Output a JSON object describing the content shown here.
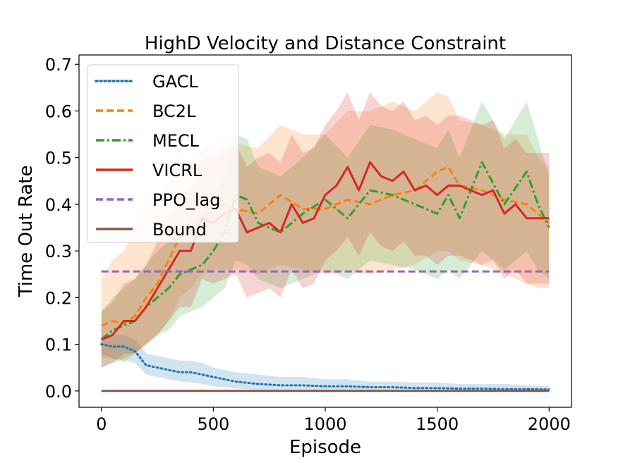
{
  "chart_data": {
    "type": "line",
    "title": "HighD Velocity and Distance Constraint",
    "xlabel": "Episode",
    "ylabel": "Time Out Rate",
    "xlim": [
      -100,
      2100
    ],
    "ylim": [
      -0.035,
      0.72
    ],
    "xticks": [
      0,
      500,
      1000,
      1500,
      2000
    ],
    "xtick_labels": [
      "0",
      "500",
      "1000",
      "1500",
      "2000"
    ],
    "yticks": [
      0.0,
      0.1,
      0.2,
      0.3,
      0.4,
      0.5,
      0.6,
      0.7
    ],
    "ytick_labels": [
      "0.0",
      "0.1",
      "0.2",
      "0.3",
      "0.4",
      "0.5",
      "0.6",
      "0.7"
    ],
    "legend_position": "top-left",
    "series": [
      {
        "name": "GACL",
        "color": "#1f77b4",
        "dash": "dotted",
        "x": [
          0,
          50,
          100,
          150,
          200,
          250,
          300,
          350,
          400,
          450,
          500,
          550,
          600,
          700,
          800,
          900,
          1000,
          1100,
          1200,
          1300,
          1400,
          1500,
          1600,
          1700,
          1800,
          1900,
          2000
        ],
        "y": [
          0.1,
          0.095,
          0.095,
          0.085,
          0.055,
          0.05,
          0.045,
          0.04,
          0.04,
          0.035,
          0.03,
          0.025,
          0.02,
          0.015,
          0.012,
          0.012,
          0.01,
          0.01,
          0.008,
          0.008,
          0.006,
          0.006,
          0.005,
          0.005,
          0.004,
          0.004,
          0.003
        ],
        "band_low": [
          0.08,
          0.07,
          0.065,
          0.06,
          0.035,
          0.03,
          0.025,
          0.02,
          0.018,
          0.015,
          0.01,
          0.008,
          0.005,
          0.003,
          0.002,
          0.002,
          0.001,
          0.001,
          0.0,
          0.0,
          0.0,
          0.0,
          0.0,
          0.0,
          0.0,
          0.0,
          0.0
        ],
        "band_high": [
          0.12,
          0.12,
          0.12,
          0.11,
          0.08,
          0.075,
          0.07,
          0.065,
          0.065,
          0.06,
          0.05,
          0.045,
          0.04,
          0.035,
          0.03,
          0.03,
          0.025,
          0.025,
          0.02,
          0.02,
          0.018,
          0.018,
          0.015,
          0.015,
          0.015,
          0.012,
          0.01
        ]
      },
      {
        "name": "BC2L",
        "color": "#ff7f0e",
        "dash": "dashed",
        "x": [
          0,
          50,
          100,
          150,
          200,
          250,
          300,
          350,
          400,
          450,
          500,
          550,
          600,
          700,
          800,
          900,
          1000,
          1100,
          1200,
          1300,
          1400,
          1500,
          1550,
          1600,
          1700,
          1800,
          1900,
          1950,
          2000
        ],
        "y": [
          0.14,
          0.15,
          0.145,
          0.16,
          0.2,
          0.23,
          0.28,
          0.33,
          0.35,
          0.37,
          0.39,
          0.4,
          0.39,
          0.38,
          0.42,
          0.39,
          0.39,
          0.41,
          0.4,
          0.42,
          0.43,
          0.47,
          0.48,
          0.44,
          0.43,
          0.41,
          0.4,
          0.38,
          0.36
        ],
        "band_low": [
          0.07,
          0.07,
          0.06,
          0.08,
          0.1,
          0.12,
          0.15,
          0.2,
          0.22,
          0.25,
          0.26,
          0.26,
          0.26,
          0.25,
          0.27,
          0.26,
          0.25,
          0.26,
          0.25,
          0.26,
          0.27,
          0.3,
          0.3,
          0.28,
          0.27,
          0.25,
          0.23,
          0.22,
          0.22
        ],
        "band_high": [
          0.24,
          0.28,
          0.3,
          0.35,
          0.4,
          0.42,
          0.45,
          0.5,
          0.5,
          0.52,
          0.53,
          0.55,
          0.53,
          0.52,
          0.57,
          0.55,
          0.55,
          0.6,
          0.6,
          0.62,
          0.6,
          0.64,
          0.63,
          0.58,
          0.57,
          0.55,
          0.55,
          0.5,
          0.48
        ]
      },
      {
        "name": "MECL",
        "color": "#2ca02c",
        "dash": "dashdot",
        "x": [
          0,
          50,
          100,
          150,
          200,
          250,
          300,
          350,
          400,
          450,
          500,
          550,
          600,
          650,
          700,
          800,
          900,
          1000,
          1100,
          1200,
          1300,
          1400,
          1500,
          1550,
          1600,
          1700,
          1800,
          1900,
          1950,
          2000
        ],
        "y": [
          0.11,
          0.13,
          0.14,
          0.15,
          0.18,
          0.2,
          0.22,
          0.25,
          0.26,
          0.27,
          0.3,
          0.34,
          0.42,
          0.41,
          0.36,
          0.34,
          0.38,
          0.41,
          0.37,
          0.43,
          0.42,
          0.4,
          0.38,
          0.42,
          0.37,
          0.49,
          0.4,
          0.47,
          0.4,
          0.35
        ],
        "band_low": [
          0.05,
          0.06,
          0.07,
          0.08,
          0.1,
          0.12,
          0.13,
          0.16,
          0.17,
          0.18,
          0.2,
          0.22,
          0.28,
          0.27,
          0.24,
          0.22,
          0.24,
          0.26,
          0.24,
          0.28,
          0.27,
          0.26,
          0.24,
          0.26,
          0.24,
          0.3,
          0.26,
          0.3,
          0.26,
          0.24
        ],
        "band_high": [
          0.17,
          0.2,
          0.22,
          0.24,
          0.27,
          0.3,
          0.32,
          0.35,
          0.37,
          0.38,
          0.42,
          0.46,
          0.55,
          0.54,
          0.48,
          0.46,
          0.5,
          0.55,
          0.5,
          0.57,
          0.56,
          0.54,
          0.52,
          0.56,
          0.5,
          0.62,
          0.54,
          0.62,
          0.54,
          0.46
        ]
      },
      {
        "name": "VICRL",
        "color": "#d62728",
        "dash": "solid",
        "x": [
          0,
          50,
          100,
          150,
          200,
          250,
          300,
          350,
          400,
          450,
          500,
          550,
          600,
          650,
          700,
          750,
          800,
          850,
          900,
          950,
          1000,
          1050,
          1100,
          1150,
          1200,
          1250,
          1300,
          1350,
          1400,
          1450,
          1500,
          1550,
          1600,
          1650,
          1700,
          1750,
          1800,
          1850,
          1900,
          1950,
          2000
        ],
        "y": [
          0.11,
          0.12,
          0.15,
          0.15,
          0.18,
          0.22,
          0.26,
          0.3,
          0.3,
          0.37,
          0.36,
          0.38,
          0.39,
          0.34,
          0.35,
          0.36,
          0.34,
          0.4,
          0.36,
          0.37,
          0.42,
          0.44,
          0.48,
          0.43,
          0.49,
          0.46,
          0.45,
          0.47,
          0.43,
          0.44,
          0.42,
          0.44,
          0.44,
          0.43,
          0.42,
          0.43,
          0.38,
          0.4,
          0.37,
          0.37,
          0.37
        ],
        "band_low": [
          0.05,
          0.06,
          0.08,
          0.08,
          0.1,
          0.12,
          0.15,
          0.18,
          0.18,
          0.24,
          0.23,
          0.24,
          0.25,
          0.2,
          0.21,
          0.22,
          0.2,
          0.26,
          0.22,
          0.23,
          0.28,
          0.3,
          0.33,
          0.29,
          0.34,
          0.31,
          0.3,
          0.32,
          0.29,
          0.29,
          0.27,
          0.29,
          0.29,
          0.28,
          0.27,
          0.28,
          0.24,
          0.26,
          0.23,
          0.23,
          0.23
        ],
        "band_high": [
          0.17,
          0.19,
          0.23,
          0.24,
          0.27,
          0.32,
          0.37,
          0.42,
          0.43,
          0.5,
          0.5,
          0.52,
          0.53,
          0.48,
          0.5,
          0.51,
          0.49,
          0.55,
          0.51,
          0.52,
          0.57,
          0.6,
          0.64,
          0.58,
          0.64,
          0.61,
          0.6,
          0.62,
          0.58,
          0.59,
          0.57,
          0.59,
          0.59,
          0.58,
          0.57,
          0.58,
          0.52,
          0.54,
          0.51,
          0.51,
          0.51
        ]
      },
      {
        "name": "PPO_lag",
        "color": "#9467bd",
        "dash": "dashed",
        "x": [
          0,
          2000
        ],
        "y": [
          0.256,
          0.256
        ]
      },
      {
        "name": "Bound",
        "color": "#8c564b",
        "dash": "solid",
        "x": [
          0,
          2000
        ],
        "y": [
          0.0,
          0.0
        ]
      }
    ]
  }
}
